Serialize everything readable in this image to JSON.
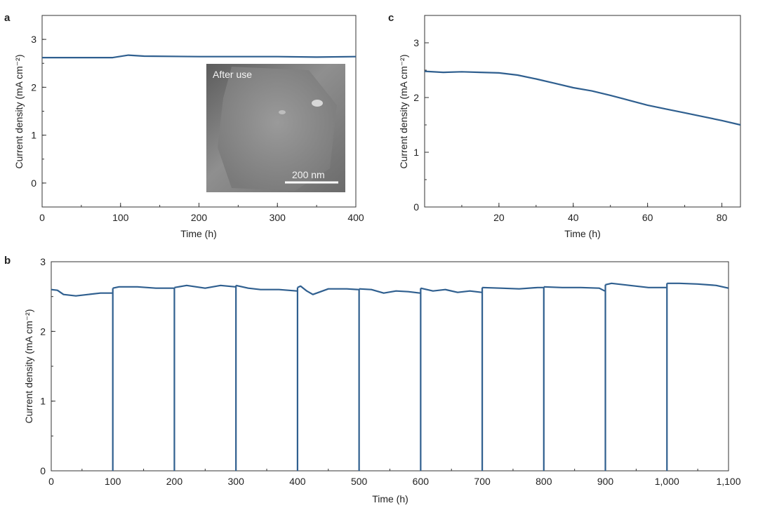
{
  "colors": {
    "series": "#2f5f8f",
    "axis": "#333333",
    "inset_bg": "#8a8a8a"
  },
  "chart_data": [
    {
      "panel": "a",
      "type": "line",
      "xlabel": "Time (h)",
      "ylabel": "Current density (mA cm⁻²)",
      "xlim": [
        0,
        400
      ],
      "ylim": [
        -0.5,
        3.5
      ],
      "xticks": [
        0,
        100,
        200,
        300,
        400
      ],
      "xtick_labels": [
        "0",
        "100",
        "200",
        "300",
        "400"
      ],
      "yticks": [
        0,
        1,
        2,
        3
      ],
      "ytick_labels": [
        "0",
        "1",
        "2",
        "3"
      ],
      "series": [
        {
          "x": [
            0,
            50,
            90,
            110,
            130,
            200,
            260,
            300,
            350,
            400
          ],
          "y": [
            2.62,
            2.62,
            2.62,
            2.67,
            2.65,
            2.64,
            2.64,
            2.64,
            2.63,
            2.64
          ]
        }
      ],
      "inset": {
        "label": "After use",
        "scalebar": "200 nm"
      }
    },
    {
      "panel": "c",
      "type": "line",
      "xlabel": "Time (h)",
      "ylabel": "Current density (mA cm⁻²)",
      "xlim": [
        0,
        85
      ],
      "ylim": [
        0,
        3.5
      ],
      "xticks": [
        20,
        40,
        60,
        80
      ],
      "xtick_labels": [
        "20",
        "40",
        "60",
        "80"
      ],
      "yticks": [
        0,
        1,
        2,
        3
      ],
      "ytick_labels": [
        "0",
        "1",
        "2",
        "3"
      ],
      "series": [
        {
          "x": [
            0,
            5,
            10,
            15,
            20,
            25,
            30,
            35,
            40,
            45,
            50,
            55,
            60,
            65,
            70,
            75,
            80,
            85
          ],
          "y": [
            2.48,
            2.46,
            2.47,
            2.46,
            2.45,
            2.41,
            2.34,
            2.26,
            2.18,
            2.12,
            2.04,
            1.95,
            1.86,
            1.79,
            1.72,
            1.65,
            1.58,
            1.5
          ]
        }
      ]
    },
    {
      "panel": "b",
      "type": "line",
      "xlabel": "Time (h)",
      "ylabel": "Current density (mA cm⁻²)",
      "xlim": [
        0,
        1100
      ],
      "ylim": [
        0,
        3
      ],
      "xticks": [
        0,
        100,
        200,
        300,
        400,
        500,
        600,
        700,
        800,
        900,
        1000,
        1100
      ],
      "xtick_labels": [
        "0",
        "100",
        "200",
        "300",
        "400",
        "500",
        "600",
        "700",
        "800",
        "900",
        "1,000",
        "1,100"
      ],
      "yticks": [
        0,
        1,
        2,
        3
      ],
      "ytick_labels": [
        "0",
        "1",
        "2",
        "3"
      ],
      "cycles": [
        {
          "x": [
            0,
            10,
            20,
            40,
            60,
            80,
            99
          ],
          "y": [
            2.6,
            2.59,
            2.53,
            2.51,
            2.53,
            2.55,
            2.55
          ]
        },
        {
          "x": [
            100,
            110,
            140,
            170,
            199
          ],
          "y": [
            2.62,
            2.64,
            2.64,
            2.62,
            2.62
          ]
        },
        {
          "x": [
            200,
            220,
            250,
            275,
            299
          ],
          "y": [
            2.63,
            2.66,
            2.62,
            2.66,
            2.64
          ]
        },
        {
          "x": [
            300,
            320,
            340,
            370,
            399
          ],
          "y": [
            2.66,
            2.62,
            2.6,
            2.6,
            2.58
          ]
        },
        {
          "x": [
            400,
            405,
            415,
            425,
            450,
            480,
            499
          ],
          "y": [
            2.63,
            2.65,
            2.58,
            2.53,
            2.61,
            2.61,
            2.6
          ]
        },
        {
          "x": [
            500,
            520,
            540,
            560,
            580,
            599
          ],
          "y": [
            2.61,
            2.6,
            2.55,
            2.58,
            2.57,
            2.55
          ]
        },
        {
          "x": [
            600,
            620,
            640,
            660,
            680,
            699
          ],
          "y": [
            2.62,
            2.58,
            2.6,
            2.56,
            2.58,
            2.56
          ]
        },
        {
          "x": [
            700,
            730,
            760,
            790,
            799
          ],
          "y": [
            2.63,
            2.62,
            2.61,
            2.63,
            2.63
          ]
        },
        {
          "x": [
            800,
            830,
            860,
            890,
            899
          ],
          "y": [
            2.64,
            2.63,
            2.63,
            2.62,
            2.58
          ]
        },
        {
          "x": [
            900,
            910,
            940,
            970,
            999
          ],
          "y": [
            2.67,
            2.69,
            2.66,
            2.63,
            2.63
          ]
        },
        {
          "x": [
            1000,
            1020,
            1050,
            1080,
            1100
          ],
          "y": [
            2.69,
            2.69,
            2.68,
            2.66,
            2.62
          ]
        }
      ]
    }
  ]
}
